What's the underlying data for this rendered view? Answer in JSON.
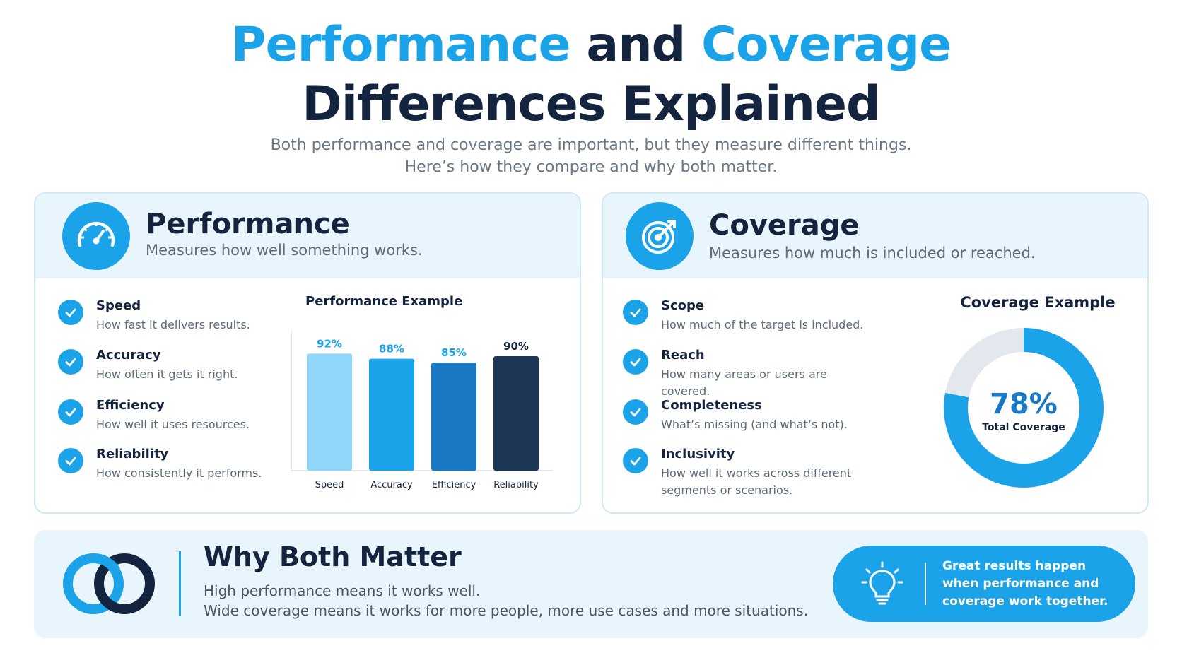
{
  "header": {
    "title_part1": "Performance",
    "title_part2": "and",
    "title_part3": "Coverage",
    "title_line2": "Differences Explained",
    "subtitle_line1": "Both performance and coverage are important, but they measure different things.",
    "subtitle_line2": "Here’s how they compare and why both matter."
  },
  "performance": {
    "icon": "speedometer-icon",
    "title": "Performance",
    "description": "Measures how well something works.",
    "items": [
      {
        "title": "Speed",
        "description": "How fast it delivers results."
      },
      {
        "title": "Accuracy",
        "description": "How often it gets it right."
      },
      {
        "title": "Efficiency",
        "description": "How well it uses resources."
      },
      {
        "title": "Reliability",
        "description": "How consistently it performs."
      }
    ]
  },
  "coverage": {
    "icon": "target-icon",
    "title": "Coverage",
    "description": "Measures how much is included or reached.",
    "items": [
      {
        "title": "Scope",
        "description": "How much of the target is included."
      },
      {
        "title": "Reach",
        "description": "How many areas or users are covered."
      },
      {
        "title": "Completeness",
        "description": "What’s missing (and what’s not)."
      },
      {
        "title": "Inclusivity",
        "description": "How well it works across different segments or scenarios."
      }
    ]
  },
  "chart_data": [
    {
      "type": "bar",
      "title": "Performance Example",
      "categories": [
        "Speed",
        "Accuracy",
        "Efficiency",
        "Reliability"
      ],
      "values": [
        92,
        88,
        85,
        90
      ],
      "value_labels": [
        "92%",
        "88%",
        "85%",
        "90%"
      ],
      "colors": [
        "#8fd6f8",
        "#1aa3e8",
        "#1a79c4",
        "#1e3656"
      ],
      "ylim": [
        0,
        100
      ],
      "grid": false
    },
    {
      "type": "pie",
      "title": "Coverage Example",
      "slices": [
        {
          "name": "Total Coverage",
          "value": 78,
          "color": "#1aa3e8"
        },
        {
          "name": "",
          "value": 22,
          "color": "#e3e8ee"
        }
      ],
      "center_value": "78%",
      "center_label": "Total Coverage"
    }
  ],
  "bottom": {
    "icon": "linked-rings-icon",
    "title": "Why Both Matter",
    "line1": "High performance means it works well.",
    "line2": "Wide coverage means it works for more people, more use cases and more situations.",
    "callout_icon": "lightbulb-icon",
    "callout": "Great results happen when performance and coverage work together."
  },
  "colors": {
    "accent": "#1aa3e8",
    "navy": "#14243f",
    "panel": "#e9f5fc"
  }
}
